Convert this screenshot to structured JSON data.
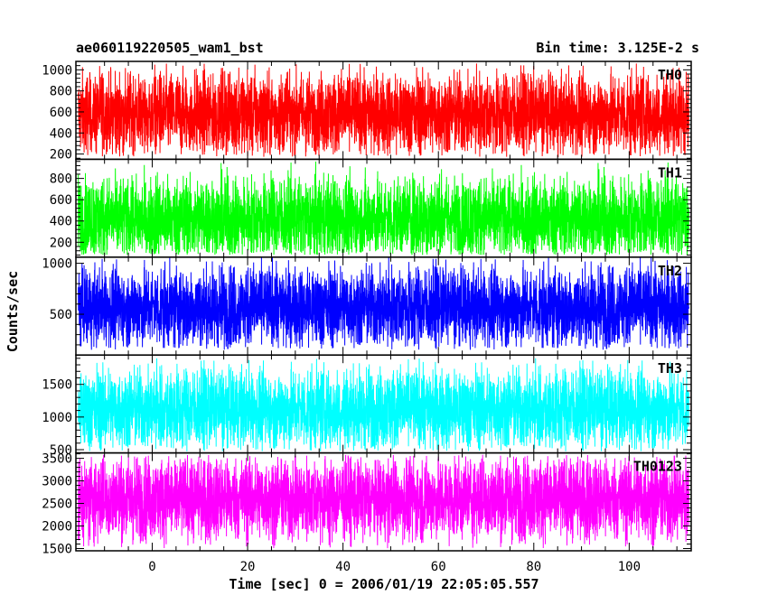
{
  "header": {
    "title": "ae060119220505_wam1_bst",
    "bin_time": "Bin time: 3.125E-2 s"
  },
  "chart_data": {
    "type": "line",
    "xlabel": "Time [sec] 0 = 2006/01/19 22:05:05.557",
    "ylabel": "Counts/sec",
    "xlim": [
      -16,
      113
    ],
    "x_range_data": [
      -15.5,
      112.5
    ],
    "x_ticks": [
      0,
      20,
      40,
      60,
      80,
      100
    ],
    "grid": false,
    "legend": "none",
    "panels": [
      {
        "name": "TH0",
        "color": "#ff0000",
        "ylim": [
          150,
          1080
        ],
        "yticks": [
          200,
          400,
          600,
          800,
          1000
        ],
        "mean": 580,
        "low": 170,
        "high": 1060
      },
      {
        "name": "TH1",
        "color": "#00ff00",
        "ylim": [
          60,
          980
        ],
        "yticks": [
          200,
          400,
          600,
          800
        ],
        "mean": 420,
        "low": 80,
        "high": 960
      },
      {
        "name": "TH2",
        "color": "#0000ff",
        "ylim": [
          100,
          1060
        ],
        "yticks": [
          500,
          1000
        ],
        "mean": 570,
        "low": 150,
        "high": 1060
      },
      {
        "name": "TH3",
        "color": "#00ffff",
        "ylim": [
          450,
          1950
        ],
        "yticks": [
          500,
          1000,
          1500
        ],
        "mean": 1120,
        "low": 470,
        "high": 1900
      },
      {
        "name": "TH0123",
        "color": "#ff00ff",
        "ylim": [
          1450,
          3620
        ],
        "yticks": [
          1500,
          2000,
          2500,
          3000,
          3500
        ],
        "mean": 2600,
        "low": 1500,
        "high": 3580
      }
    ]
  }
}
